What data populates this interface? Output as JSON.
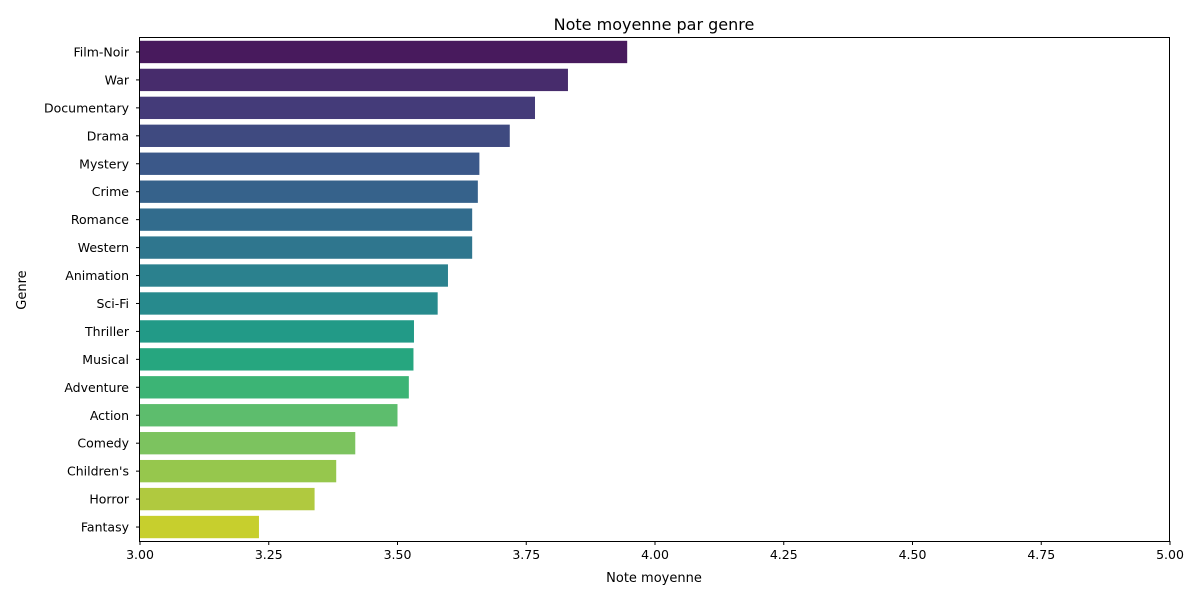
{
  "chart_data": {
    "type": "bar",
    "orientation": "horizontal",
    "title": "Note moyenne par genre",
    "xlabel": "Note moyenne",
    "ylabel": "Genre",
    "xlim": [
      3.0,
      5.0
    ],
    "xticks": [
      "3.00",
      "3.25",
      "3.50",
      "3.75",
      "4.00",
      "4.25",
      "4.50",
      "4.75",
      "5.00"
    ],
    "grid": false,
    "colormap": "viridis",
    "categories": [
      "Film-Noir",
      "War",
      "Documentary",
      "Drama",
      "Mystery",
      "Crime",
      "Romance",
      "Western",
      "Animation",
      "Sci-Fi",
      "Thriller",
      "Musical",
      "Adventure",
      "Action",
      "Comedy",
      "Children's",
      "Horror",
      "Fantasy"
    ],
    "values": [
      3.946,
      3.831,
      3.767,
      3.718,
      3.659,
      3.656,
      3.645,
      3.645,
      3.598,
      3.578,
      3.532,
      3.531,
      3.522,
      3.5,
      3.418,
      3.381,
      3.339,
      3.231
    ],
    "colors": [
      "#481a5d",
      "#472c6c",
      "#443b79",
      "#3f4a80",
      "#3b5889",
      "#36628b",
      "#326c8d",
      "#2f768e",
      "#2b818e",
      "#278a8d",
      "#229a87",
      "#26a67f",
      "#3cb475",
      "#5dbd6d",
      "#7cc35f",
      "#96c74d",
      "#b0c93f",
      "#c7cf2d"
    ]
  }
}
